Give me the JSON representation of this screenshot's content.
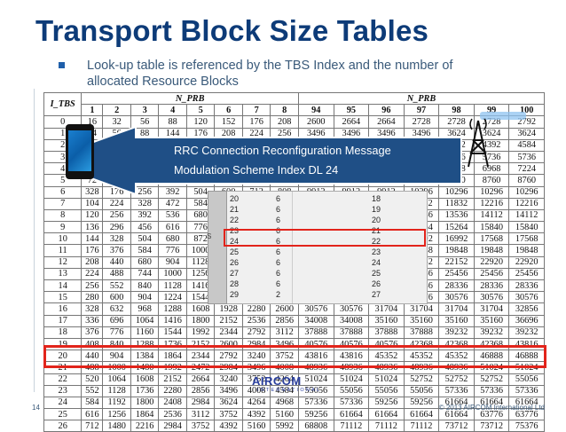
{
  "slide": {
    "title": "Transport Block Size Tables",
    "bullet": "Look-up table is referenced by the TBS Index and the number of allocated Resource Blocks",
    "page_number": "14",
    "copyright": "© 2013 AIRCOM International Ltd",
    "logo_text": "AIRCOM",
    "logo_subtext": "INTERNATIONAL"
  },
  "callout": {
    "line1": "RRC Connection Reconfiguration Message",
    "line2": "Modulation Scheme Index DL  24"
  },
  "left_table": {
    "row_header": "I_TBS",
    "group_header": "N_PRB",
    "columns": [
      "1",
      "2",
      "3",
      "4",
      "5",
      "6",
      "7",
      "8"
    ],
    "rows": [
      [
        "0",
        "16",
        "32",
        "56",
        "88",
        "120",
        "152",
        "176",
        "208"
      ],
      [
        "1",
        "24",
        "56",
        "88",
        "144",
        "176",
        "208",
        "224",
        "256"
      ],
      [
        "2",
        "32",
        "72",
        "144",
        "176",
        "208",
        "256",
        "296",
        "328"
      ],
      [
        "3",
        "40",
        "104",
        "176",
        "208",
        "256",
        "328",
        "392",
        "440"
      ],
      [
        "4",
        "56",
        "120",
        "208",
        "256",
        "328",
        "408",
        "488",
        "552"
      ],
      [
        "5",
        "72",
        "144",
        "224",
        "328",
        "424",
        "504",
        "600",
        "680"
      ],
      [
        "6",
        "328",
        "176",
        "256",
        "392",
        "504",
        "600",
        "712",
        "808"
      ],
      [
        "7",
        "104",
        "224",
        "328",
        "472",
        "584",
        "712",
        "840",
        "968"
      ],
      [
        "8",
        "120",
        "256",
        "392",
        "536",
        "680",
        "808",
        "968",
        "1096"
      ],
      [
        "9",
        "136",
        "296",
        "456",
        "616",
        "776",
        "936",
        "1096",
        "1256"
      ],
      [
        "10",
        "144",
        "328",
        "504",
        "680",
        "872",
        "1032",
        "1224",
        "1384"
      ],
      [
        "11",
        "176",
        "376",
        "584",
        "776",
        "1000",
        "1192",
        "1384",
        "1608"
      ],
      [
        "12",
        "208",
        "440",
        "680",
        "904",
        "1128",
        "1352",
        "1608",
        "1800"
      ],
      [
        "13",
        "224",
        "488",
        "744",
        "1000",
        "1256",
        "1544",
        "1800",
        "2024"
      ],
      [
        "14",
        "256",
        "552",
        "840",
        "1128",
        "1416",
        "1736",
        "1992",
        "2280"
      ],
      [
        "15",
        "280",
        "600",
        "904",
        "1224",
        "1544",
        "1800",
        "2152",
        "2472"
      ],
      [
        "16",
        "328",
        "632",
        "968",
        "1288",
        "1608",
        "1928",
        "2280",
        "2600"
      ],
      [
        "17",
        "336",
        "696",
        "1064",
        "1416",
        "1800",
        "2152",
        "2536",
        "2856"
      ],
      [
        "18",
        "376",
        "776",
        "1160",
        "1544",
        "1992",
        "2344",
        "2792",
        "3112"
      ],
      [
        "19",
        "408",
        "840",
        "1288",
        "1736",
        "2152",
        "2600",
        "2984",
        "3496"
      ],
      [
        "20",
        "440",
        "904",
        "1384",
        "1864",
        "2344",
        "2792",
        "3240",
        "3752"
      ],
      [
        "21",
        "488",
        "1000",
        "1480",
        "1992",
        "2472",
        "2984",
        "3496",
        "4008"
      ],
      [
        "22",
        "520",
        "1064",
        "1608",
        "2152",
        "2664",
        "3240",
        "3752",
        "4264"
      ],
      [
        "23",
        "552",
        "1128",
        "1736",
        "2280",
        "2856",
        "3496",
        "4008",
        "4584"
      ],
      [
        "24",
        "584",
        "1192",
        "1800",
        "2408",
        "2984",
        "3624",
        "4264",
        "4968"
      ],
      [
        "25",
        "616",
        "1256",
        "1864",
        "2536",
        "3112",
        "3752",
        "4392",
        "5160"
      ],
      [
        "26",
        "712",
        "1480",
        "2216",
        "2984",
        "3752",
        "4392",
        "5160",
        "5992"
      ]
    ]
  },
  "right_table": {
    "group_header": "N_PRB",
    "columns": [
      "94",
      "95",
      "96",
      "97",
      "98",
      "99",
      "100"
    ],
    "rows": [
      [
        "2600",
        "2664",
        "2664",
        "2728",
        "2728",
        "2728",
        "2792"
      ],
      [
        "3496",
        "3496",
        "3496",
        "3496",
        "3624",
        "3624",
        "3624"
      ],
      [
        "4264",
        "4264",
        "4392",
        "4392",
        "4392",
        "4392",
        "4584"
      ],
      [
        "5544",
        "5544",
        "5544",
        "5544",
        "5736",
        "5736",
        "5736"
      ],
      [
        "6712",
        "6712",
        "6712",
        "6968",
        "6968",
        "6968",
        "7224"
      ],
      [
        "8248",
        "8248",
        "8504",
        "8504",
        "8760",
        "8760",
        "8760"
      ],
      [
        "9912",
        "9912",
        "9912",
        "10296",
        "10296",
        "10296",
        "10296"
      ],
      [
        "11448",
        "11448",
        "11448",
        "11832",
        "11832",
        "12216",
        "12216"
      ],
      [
        "13536",
        "13536",
        "13536",
        "13536",
        "13536",
        "14112",
        "14112"
      ],
      [
        "15264",
        "15264",
        "15264",
        "15264",
        "15264",
        "15840",
        "15840"
      ],
      [
        "16992",
        "16992",
        "16992",
        "16992",
        "16992",
        "17568",
        "17568"
      ],
      [
        "19848",
        "19848",
        "19848",
        "19848",
        "19848",
        "19848",
        "19848"
      ],
      [
        "22152",
        "22152",
        "22152",
        "22152",
        "22152",
        "22920",
        "22920"
      ],
      [
        "25456",
        "25456",
        "25456",
        "25456",
        "25456",
        "25456",
        "25456"
      ],
      [
        "27376",
        "27376",
        "28336",
        "28336",
        "28336",
        "28336",
        "28336"
      ],
      [
        "30576",
        "30576",
        "30576",
        "30576",
        "30576",
        "30576",
        "30576"
      ],
      [
        "30576",
        "30576",
        "31704",
        "31704",
        "31704",
        "31704",
        "32856"
      ],
      [
        "34008",
        "34008",
        "35160",
        "35160",
        "35160",
        "35160",
        "36696"
      ],
      [
        "37888",
        "37888",
        "37888",
        "37888",
        "39232",
        "39232",
        "39232"
      ],
      [
        "40576",
        "40576",
        "40576",
        "42368",
        "42368",
        "42368",
        "43816"
      ],
      [
        "43816",
        "43816",
        "45352",
        "45352",
        "45352",
        "46888",
        "46888"
      ],
      [
        "48936",
        "48936",
        "48936",
        "48936",
        "48936",
        "51024",
        "51024"
      ],
      [
        "51024",
        "51024",
        "51024",
        "52752",
        "52752",
        "52752",
        "55056"
      ],
      [
        "55056",
        "55056",
        "55056",
        "55056",
        "57336",
        "57336",
        "57336"
      ],
      [
        "57336",
        "57336",
        "59256",
        "59256",
        "61664",
        "61664",
        "61664"
      ],
      [
        "59256",
        "61664",
        "61664",
        "61664",
        "61664",
        "63776",
        "63776"
      ],
      [
        "68808",
        "71112",
        "71112",
        "71112",
        "73712",
        "73712",
        "75376"
      ]
    ]
  },
  "overlay": {
    "rows": [
      [
        "20",
        "6",
        "18"
      ],
      [
        "21",
        "6",
        "19"
      ],
      [
        "22",
        "6",
        "20"
      ],
      [
        "23",
        "6",
        "21"
      ],
      [
        "24",
        "6",
        "22"
      ],
      [
        "25",
        "6",
        "23"
      ],
      [
        "26",
        "6",
        "24"
      ],
      [
        "27",
        "6",
        "25"
      ],
      [
        "28",
        "6",
        "26"
      ],
      [
        "29",
        "2",
        "27"
      ]
    ],
    "marker": "S"
  },
  "colors": {
    "title": "#0d3b78",
    "arrow": "#1f4f86",
    "highlight": "#e2241b"
  }
}
